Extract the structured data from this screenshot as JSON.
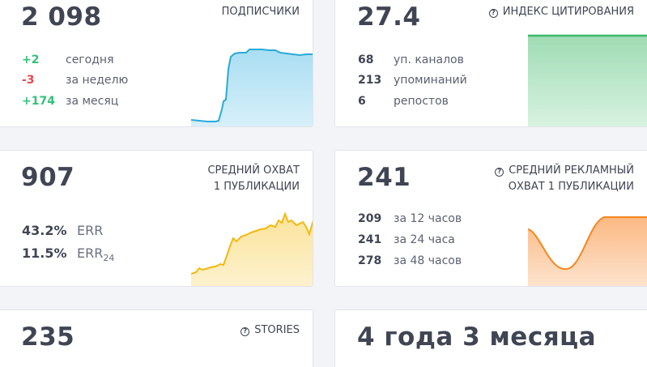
{
  "subscribers": {
    "value": "2 098",
    "label": "ПОДПИСЧИКИ",
    "rows": [
      {
        "num": "+2",
        "text": "сегодня"
      },
      {
        "num": "-3",
        "text": "за неделю"
      },
      {
        "num": "+174",
        "text": "за месяц"
      }
    ],
    "color": "#2aaad8"
  },
  "citation": {
    "value": "27.4",
    "label": "ИНДЕКС ЦИТИРОВАНИЯ",
    "rows": [
      {
        "num": "68",
        "text": "уп. каналов"
      },
      {
        "num": "213",
        "text": "упоминаний"
      },
      {
        "num": "6",
        "text": "репостов"
      }
    ],
    "color": "#3dbb6a",
    "icon": "help-circle-icon"
  },
  "reach": {
    "value": "907",
    "label_line1": "СРЕДНИЙ ОХВАТ",
    "label_line2": "1 ПУБЛИКАЦИИ",
    "err": {
      "num": "43.2%",
      "text": "ERR"
    },
    "err24": {
      "num": "11.5%",
      "text": "ERR",
      "sub": "24"
    },
    "color": "#f2b90f"
  },
  "ad_reach": {
    "value": "241",
    "label_line1": "СРЕДНИЙ РЕКЛАМНЫЙ",
    "label_line2": "ОХВАТ 1 ПУБЛИКАЦИИ",
    "rows": [
      {
        "num": "209",
        "text": "за 12 часов"
      },
      {
        "num": "241",
        "text": "за 24 часа"
      },
      {
        "num": "278",
        "text": "за 48 часов"
      }
    ],
    "color": "#f5871f",
    "icon": "help-circle-icon"
  },
  "stories": {
    "value": "235",
    "label": "STORIES",
    "icon": "help-circle-icon"
  },
  "age": {
    "value": "4 года 3 месяца"
  }
}
